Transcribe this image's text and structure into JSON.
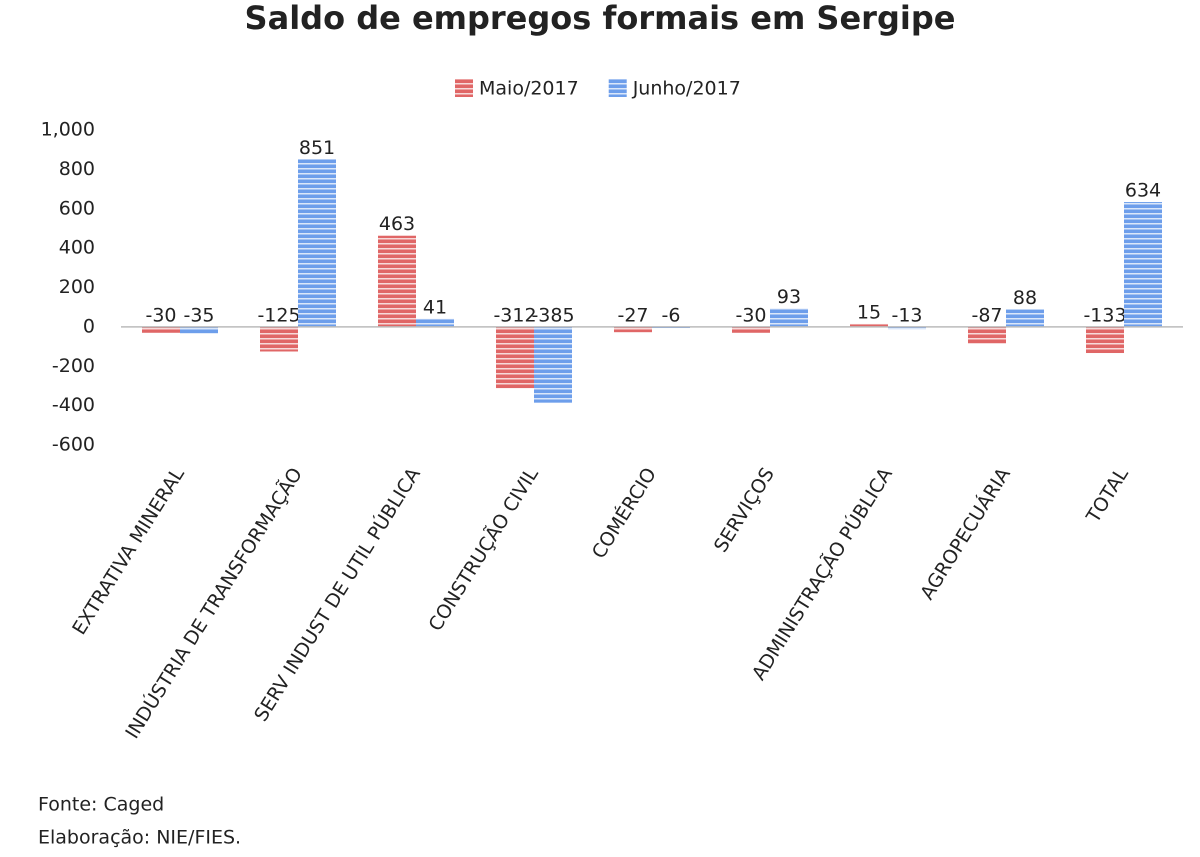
{
  "chart_data": {
    "type": "bar",
    "title": "Saldo de empregos formais em Sergipe",
    "categories": [
      "EXTRATIVA MINERAL",
      "INDÚSTRIA DE TRANSFORMAÇÃO",
      "SERV INDUST DE UTIL PÚBLICA",
      "CONSTRUÇÃO CIVIL",
      "COMÉRCIO",
      "SERVIÇOS",
      "ADMINISTRAÇÃO PÚBLICA",
      "AGROPECUÁRIA",
      "TOTAL"
    ],
    "series": [
      {
        "name": "Maio/2017",
        "color": "#e06666",
        "values": [
          -30,
          -125,
          463,
          -312,
          -27,
          -30,
          15,
          -87,
          -133
        ]
      },
      {
        "name": "Junho/2017",
        "color": "#6d9eeb",
        "values": [
          -35,
          851,
          41,
          -385,
          -6,
          93,
          -13,
          88,
          634
        ]
      }
    ],
    "ylim": [
      -600,
      1000
    ],
    "yticks": [
      {
        "value": 1000,
        "label": "1,000"
      },
      800,
      600,
      400,
      200,
      0,
      -200,
      -400,
      -600
    ],
    "grid": false,
    "legend": "top",
    "notes": [
      "Fonte: Caged",
      "Elaboração: NIE/FIES."
    ]
  }
}
